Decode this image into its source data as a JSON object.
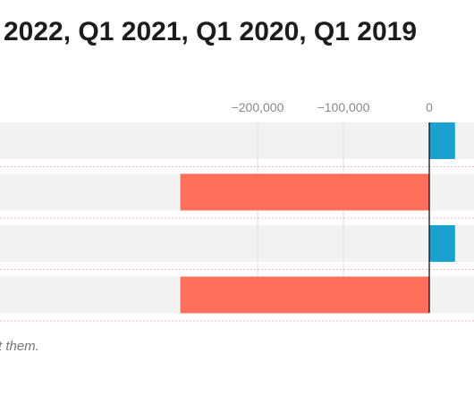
{
  "chart_data": {
    "type": "bar",
    "orientation": "horizontal",
    "title": "2022, Q1 2021, Q1 2020, Q1 2019",
    "xlabel": "",
    "ylabel": "",
    "x_ticks": [
      -200000,
      -100000,
      0
    ],
    "x_tick_labels": [
      "−200,000",
      "−100,000",
      "0"
    ],
    "grid": "vertical",
    "bars": [
      {
        "value": 30000,
        "color": "#1aa1cf"
      },
      {
        "value": -290000,
        "color": "#ff6f5a"
      },
      {
        "value": 30000,
        "color": "#1aa1cf"
      },
      {
        "value": -290000,
        "color": "#ff6f5a"
      }
    ],
    "note": "t them."
  },
  "colors": {
    "positive": "#1aa1cf",
    "negative": "#ff6f5a",
    "band_fill": "#f2f2f2",
    "grid": "#dddddd",
    "zero_line": "#000000"
  }
}
